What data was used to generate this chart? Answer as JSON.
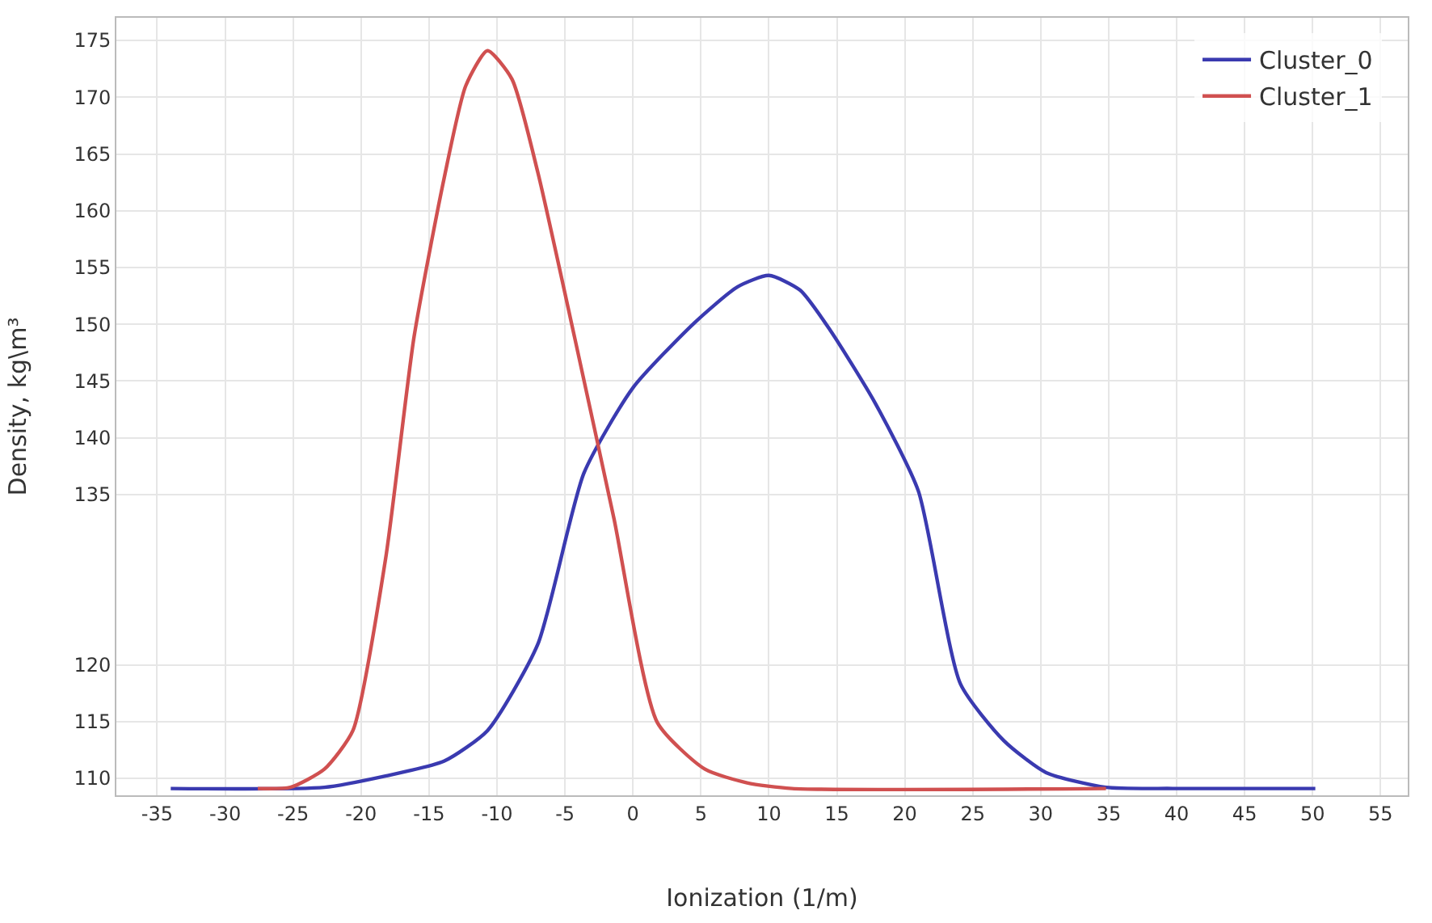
{
  "chart_data": {
    "type": "line",
    "xlabel": "Ionization (1/m)",
    "ylabel": "Density, kg\\m³",
    "xlim": [
      -38,
      57
    ],
    "xticks": [
      -35,
      -30,
      -25,
      -20,
      -15,
      -10,
      -5,
      0,
      5,
      10,
      15,
      20,
      25,
      30,
      35,
      40,
      45,
      50,
      55
    ],
    "ylim": [
      108.5,
      177
    ],
    "yticks": [
      175,
      170,
      165,
      160,
      155,
      150,
      145,
      140,
      135,
      120,
      115,
      110
    ],
    "grid": true,
    "legend": "top right",
    "marker": "none",
    "line_style": "solid",
    "series": [
      {
        "name": "Cluster_0",
        "color": "#3a3ab0",
        "x": [
          -34,
          -22.7,
          -18.2,
          -13.9,
          -10.7,
          -7,
          -3.6,
          0,
          4.5,
          7.7,
          10,
          12.3,
          14.5,
          17.8,
          21,
          24.1,
          27.3,
          30.4,
          34.8,
          39.7,
          50.2
        ],
        "values": [
          109.1,
          109.2,
          110.2,
          111.5,
          114.2,
          121.8,
          136.9,
          144.4,
          150.1,
          153.3,
          154.3,
          153.0,
          149.5,
          143.1,
          135.3,
          118.3,
          113.3,
          110.5,
          109.2,
          109.1,
          109.1
        ]
      },
      {
        "name": "Cluster_1",
        "color": "#d05050",
        "x": [
          -27.6,
          -25.2,
          -22.7,
          -20.6,
          -18.2,
          -16.1,
          -13.9,
          -12.3,
          -10.7,
          -8.9,
          -7,
          -4.3,
          -1.4,
          1.8,
          5.3,
          8.4,
          11.7,
          34.8
        ],
        "values": [
          109.1,
          109.2,
          110.8,
          114.2,
          129.3,
          148.9,
          162.8,
          171.0,
          174.1,
          171.6,
          163.4,
          148.9,
          132.9,
          114.9,
          110.8,
          109.6,
          109.1,
          109.1
        ]
      }
    ]
  }
}
